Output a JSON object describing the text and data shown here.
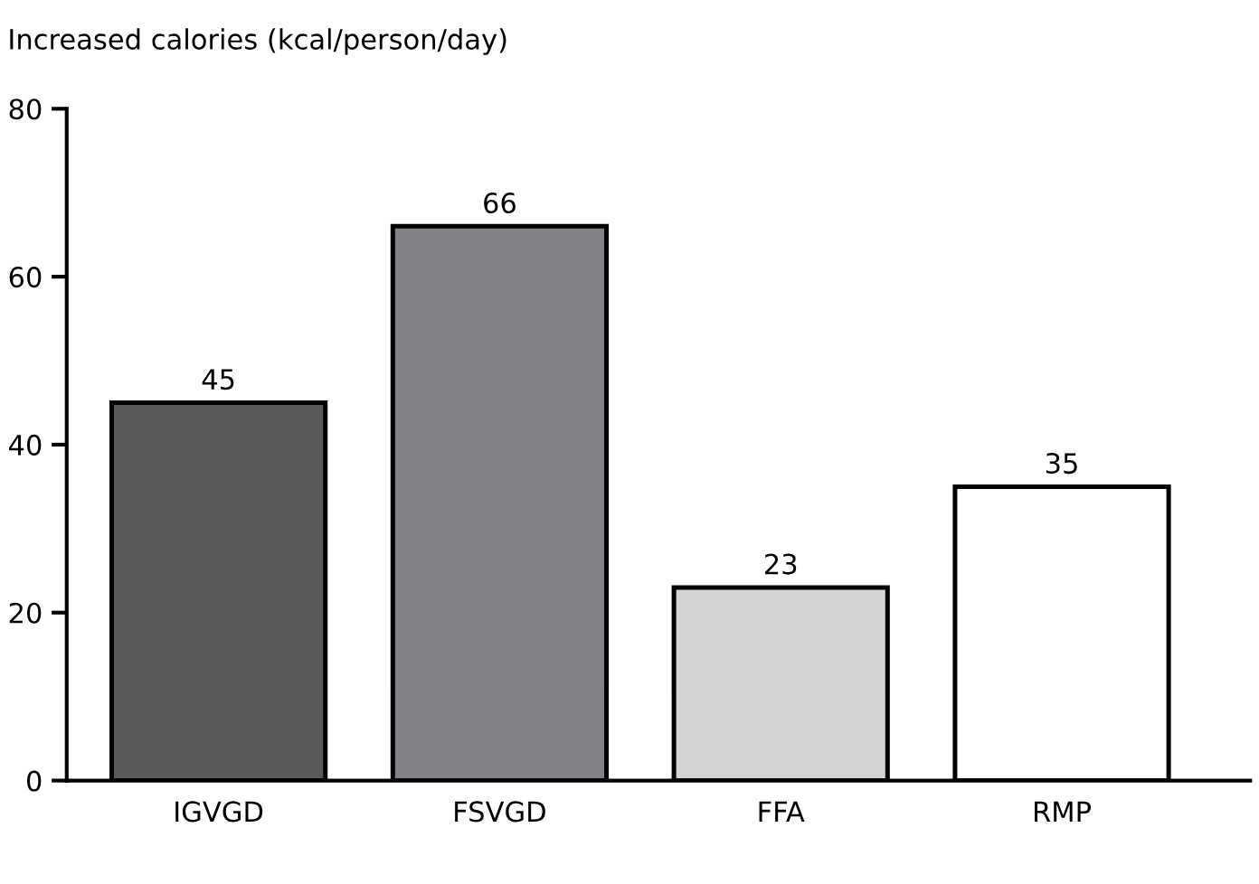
{
  "chart_data": {
    "type": "bar",
    "ylabel": "Increased calories (kcal/person/day)",
    "categories": [
      "IGVGD",
      "FSVGD",
      "FFA",
      "RMP"
    ],
    "values": [
      45,
      66,
      23,
      35
    ],
    "colors": [
      "#58595b",
      "#808285",
      "#d1d3d4",
      "#ffffff"
    ],
    "ylim": [
      0,
      80
    ],
    "yticks": [
      0,
      20,
      40,
      60,
      80
    ],
    "grid": false,
    "data_labels": true,
    "legend": false
  }
}
